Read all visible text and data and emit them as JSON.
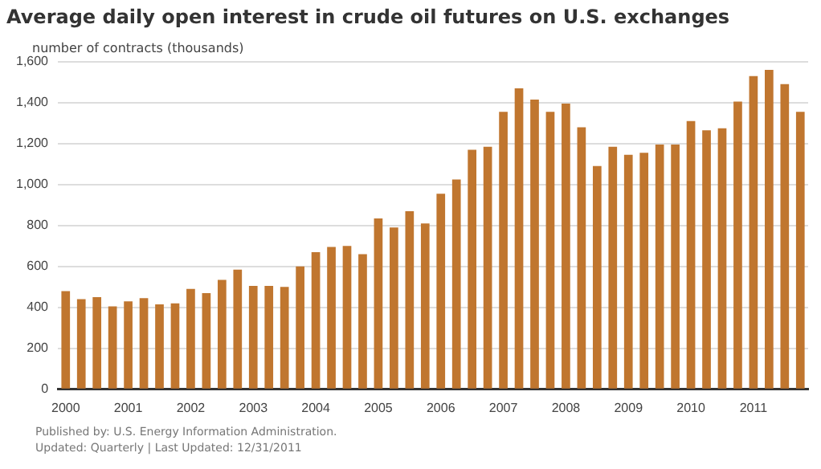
{
  "chart_data": {
    "type": "bar",
    "title": "Average daily open interest in crude oil futures on U.S. exchanges",
    "ylabel": "number of contracts (thousands)",
    "categories": [
      "2000",
      null,
      null,
      null,
      "2001",
      null,
      null,
      null,
      "2002",
      null,
      null,
      null,
      "2003",
      null,
      null,
      null,
      "2004",
      null,
      null,
      null,
      "2005",
      null,
      null,
      null,
      "2006",
      null,
      null,
      null,
      "2007",
      null,
      null,
      null,
      "2008",
      null,
      null,
      null,
      "2009",
      null,
      null,
      null,
      "2010",
      null,
      null,
      null,
      "2011",
      null,
      null,
      null
    ],
    "values": [
      480,
      440,
      450,
      405,
      430,
      445,
      415,
      420,
      490,
      470,
      535,
      585,
      505,
      505,
      500,
      600,
      670,
      695,
      700,
      660,
      835,
      790,
      870,
      810,
      955,
      1025,
      1170,
      1185,
      1355,
      1470,
      1415,
      1355,
      1395,
      1280,
      1090,
      1185,
      1145,
      1155,
      1195,
      1195,
      1310,
      1265,
      1275,
      1405,
      1530,
      1560,
      1490,
      1355
    ],
    "color": "#c0762f",
    "ylim": [
      0,
      1600
    ],
    "yticks": [
      0,
      200,
      400,
      600,
      800,
      {
        "value": 1000,
        "label": "1,000"
      },
      {
        "value": 1200,
        "label": "1,200"
      },
      {
        "value": 1400,
        "label": "1,400"
      },
      {
        "value": 1600,
        "label": "1,600"
      }
    ],
    "grid": "y",
    "legend": false,
    "annotations": [
      "Published by: U.S. Energy Information Administration.",
      "Updated: Quarterly | Last Updated: 12/31/2011"
    ]
  }
}
